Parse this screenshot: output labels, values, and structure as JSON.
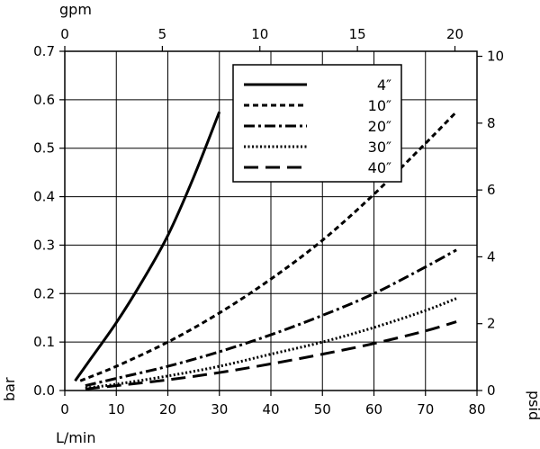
{
  "chart_data": {
    "type": "line",
    "xlabel_bottom": "L/min",
    "xlabel_top": "gpm",
    "ylabel_left": "bar",
    "ylabel_right": "psid",
    "x_bottom": {
      "lim": [
        0,
        80
      ],
      "ticks": [
        0,
        10,
        20,
        30,
        40,
        50,
        60,
        70,
        80
      ]
    },
    "x_top": {
      "lim": [
        0,
        21.13
      ],
      "ticks": [
        0,
        5,
        10,
        15,
        20
      ]
    },
    "y_left": {
      "lim": [
        0,
        0.7
      ],
      "ticks": [
        0.0,
        0.1,
        0.2,
        0.3,
        0.4,
        0.5,
        0.6,
        0.7
      ],
      "tick_labels": [
        "0.0",
        "0.1",
        "0.2",
        "0.3",
        "0.4",
        "0.5",
        "0.6",
        "0.7"
      ]
    },
    "y_right": {
      "lim": [
        0,
        10.15
      ],
      "ticks": [
        0,
        2,
        4,
        6,
        8,
        10
      ]
    },
    "grid": true,
    "legend_position": "top-right",
    "series": [
      {
        "name": "4″",
        "dash": "solid",
        "x": [
          2,
          5,
          10,
          15,
          20,
          25,
          30
        ],
        "y": [
          0.02,
          0.065,
          0.14,
          0.225,
          0.32,
          0.44,
          0.575
        ]
      },
      {
        "name": "10″",
        "dash": "short-dash",
        "x": [
          3,
          10,
          20,
          30,
          40,
          50,
          60,
          70,
          76
        ],
        "y": [
          0.02,
          0.05,
          0.1,
          0.16,
          0.23,
          0.31,
          0.405,
          0.51,
          0.575
        ]
      },
      {
        "name": "20″",
        "dash": "dash-dot",
        "x": [
          4,
          10,
          20,
          30,
          40,
          50,
          60,
          70,
          76
        ],
        "y": [
          0.01,
          0.025,
          0.05,
          0.08,
          0.115,
          0.155,
          0.2,
          0.255,
          0.29
        ]
      },
      {
        "name": "30″",
        "dash": "dotted",
        "x": [
          4,
          10,
          20,
          30,
          40,
          50,
          60,
          70,
          76
        ],
        "y": [
          0.005,
          0.013,
          0.03,
          0.05,
          0.075,
          0.1,
          0.13,
          0.165,
          0.19
        ]
      },
      {
        "name": "40″",
        "dash": "long-dash",
        "x": [
          4,
          10,
          20,
          30,
          40,
          50,
          60,
          70,
          76
        ],
        "y": [
          0.003,
          0.01,
          0.022,
          0.037,
          0.055,
          0.075,
          0.097,
          0.123,
          0.142
        ]
      }
    ]
  }
}
